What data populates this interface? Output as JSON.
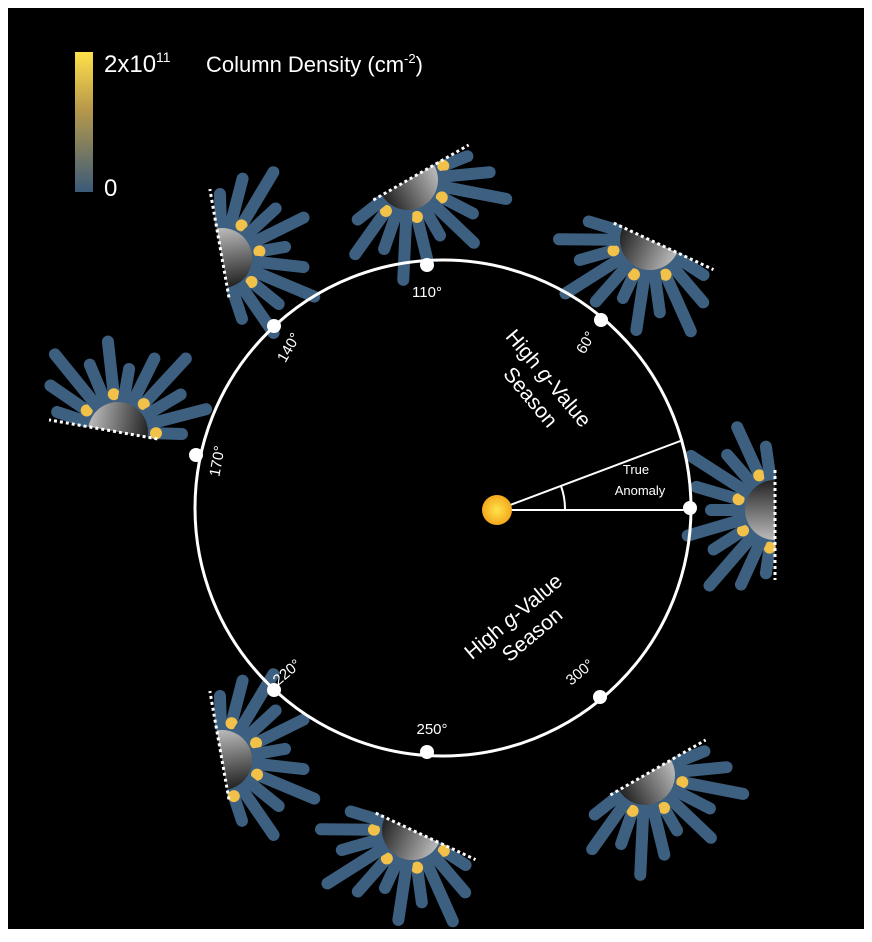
{
  "colorbar": {
    "max": {
      "base": "2x10",
      "exponent": "11"
    },
    "title": {
      "main": "Column Density (cm",
      "exponent": "-2",
      "close": ")"
    },
    "min": "0"
  },
  "orbit_labels": [
    "110°",
    "60°",
    "140°",
    "170°",
    "220°",
    "250°",
    "300°"
  ],
  "seasons": [
    {
      "line1": [
        "High ",
        "g",
        "-Value"
      ],
      "line2": "Season"
    },
    {
      "line1": [
        "High ",
        "g",
        "-Value"
      ],
      "line2": "Season"
    }
  ],
  "true_anomaly": [
    "True",
    "Anomaly"
  ]
}
